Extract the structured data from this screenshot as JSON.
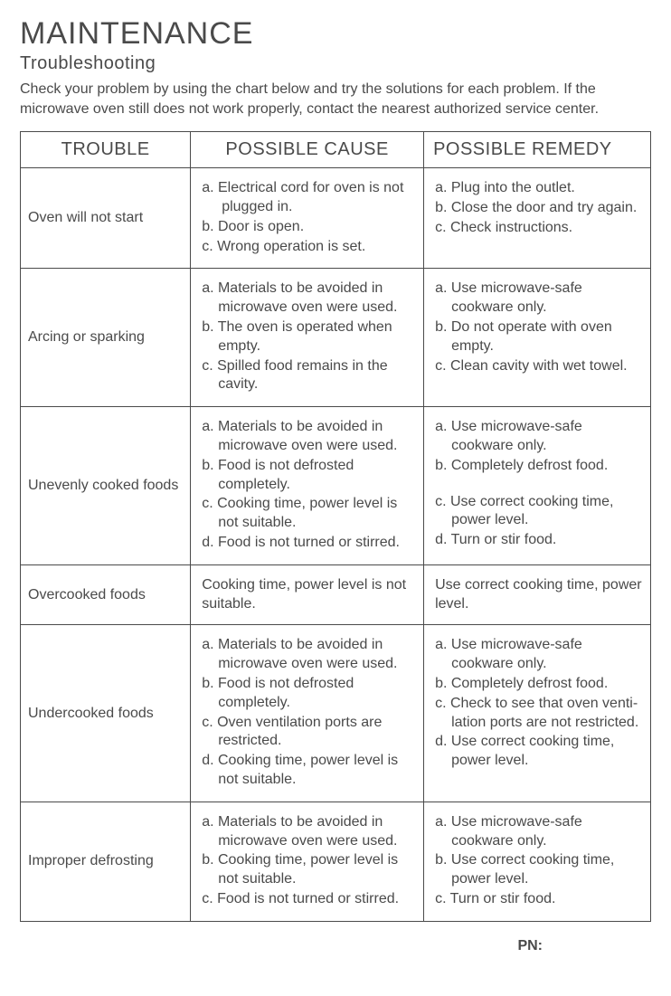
{
  "title": "MAINTENANCE",
  "subtitle": "Troubleshooting",
  "intro": "Check your problem by using the chart below and try the solutions for each problem. If the microwave oven still does not work properly, contact the nearest authorized service center.",
  "columns": [
    "TROUBLE",
    "POSSIBLE CAUSE",
    "POSSIBLE REMEDY"
  ],
  "rows": [
    {
      "trouble": "Oven will not start",
      "cause": [
        "a. Electrical cord for oven is not plugged in.",
        "b. Door is open.",
        "c. Wrong operation is set."
      ],
      "remedy": [
        "a. Plug into the outlet.",
        "b. Close the door and try again.",
        "c. Check instructions."
      ]
    },
    {
      "trouble": "Arcing or sparking",
      "cause": [
        "a. Materials to be avoided in microwave oven were used.",
        "b. The oven is operated when empty.",
        "c. Spilled food remains in the cavity."
      ],
      "remedy": [
        "a. Use microwave-safe cookware only.",
        "b. Do not operate with oven empty.",
        "c. Clean cavity with wet towel."
      ]
    },
    {
      "trouble": "Unevenly cooked foods",
      "cause": [
        "a. Materials to be avoided in microwave oven were used.",
        "b. Food is not defrosted completely.",
        "c. Cooking time, power level is not suitable.",
        "d. Food is not turned or stirred."
      ],
      "remedy": [
        "a. Use microwave-safe cookware only.",
        "b. Completely defrost food.",
        "",
        "c. Use correct cooking time, power level.",
        "d. Turn or stir food."
      ]
    },
    {
      "trouble": "Overcooked foods",
      "cause_plain": "Cooking time, power level is not suitable.",
      "remedy_plain": "Use correct cooking time, power level."
    },
    {
      "trouble": "Undercooked foods",
      "cause": [
        "a. Materials to be avoided in microwave oven were used.",
        "b. Food is not defrosted completely.",
        "c. Oven ventilation ports are restricted.",
        "d. Cooking time, power level is not suitable."
      ],
      "remedy": [
        "a. Use microwave-safe cookware only.",
        "b. Completely defrost food.",
        "c. Check to see that oven venti-lation ports are not restricted.",
        "d. Use correct cooking time, power level."
      ]
    },
    {
      "trouble": "Improper defrosting",
      "cause": [
        "a. Materials to be avoided in microwave oven were used.",
        "b. Cooking time, power level is not suitable.",
        "c. Food is not turned or stirred."
      ],
      "remedy": [
        "a. Use microwave-safe cookware only.",
        "b. Use correct cooking time, power level.",
        "c. Turn or stir food."
      ]
    }
  ],
  "pn_label": "PN:"
}
